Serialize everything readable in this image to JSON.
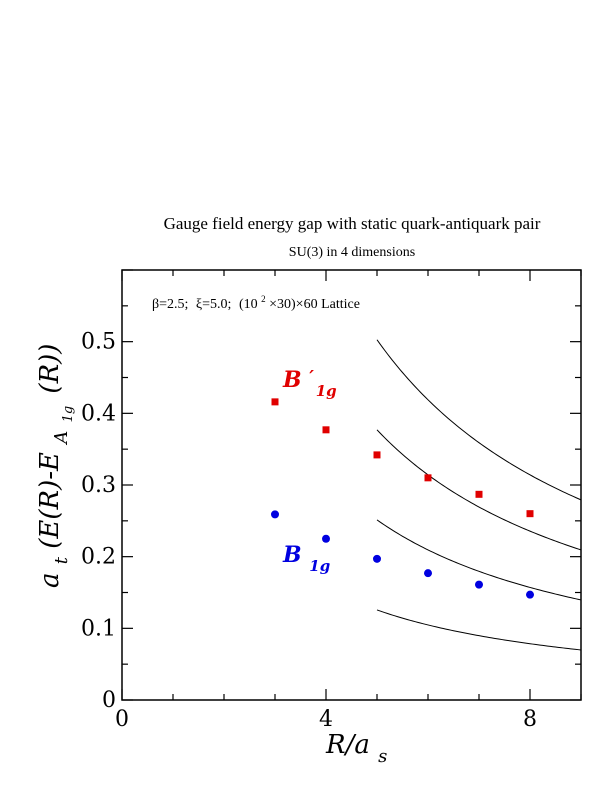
{
  "chart_data": {
    "type": "scatter",
    "title": "Gauge field energy gap with static quark-antiquark pair",
    "subtitle": "SU(3) in 4 dimensions",
    "annotation": "β=2.5; ξ=5.0; (10²×30)×60 Lattice",
    "annotation_parts": {
      "beta": "β=2.5;",
      "xi": "ξ=5.0;",
      "lattice_open": "(10",
      "lattice_sup": "2",
      "lattice_close": "×30)×60 Lattice"
    },
    "xlabel": {
      "main": "R/a",
      "sub": "s"
    },
    "ylabel": {
      "a": "a",
      "a_sub": "t",
      "mid": "(E(R)-E",
      "E_sub": "A",
      "E_subsub": "1g",
      "end": "(R))"
    },
    "xlim": [
      0,
      9
    ],
    "ylim": [
      0,
      0.6
    ],
    "x_ticks": [
      0,
      4,
      8
    ],
    "x_tick_labels": [
      "0",
      "4",
      "8"
    ],
    "y_ticks": [
      0,
      0.1,
      0.2,
      0.3,
      0.4,
      0.5
    ],
    "y_tick_labels": [
      "0",
      "0.1",
      "0.2",
      "0.3",
      "0.4",
      "0.5"
    ],
    "series": [
      {
        "label": {
          "main": "B",
          "prime": "′",
          "sub": "1g"
        },
        "color": "#e00000",
        "marker": "square",
        "x": [
          3,
          4,
          5,
          6,
          7,
          8
        ],
        "y": [
          0.416,
          0.377,
          0.342,
          0.31,
          0.287,
          0.26
        ]
      },
      {
        "label": {
          "main": "B",
          "prime": "",
          "sub": "1g"
        },
        "color": "#0000e0",
        "marker": "circle",
        "x": [
          3,
          4,
          5,
          6,
          7,
          8
        ],
        "y": [
          0.259,
          0.225,
          0.197,
          0.177,
          0.161,
          0.147
        ]
      }
    ],
    "curves_n": [
      1,
      2,
      3,
      4
    ],
    "curves_x_start": 5,
    "curve_color": "#000000"
  }
}
